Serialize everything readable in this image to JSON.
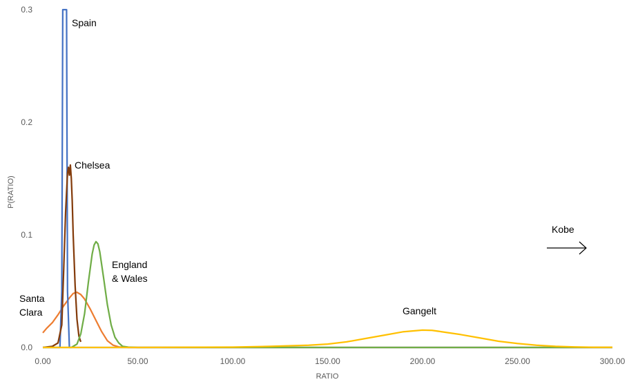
{
  "chart_data": {
    "type": "line",
    "title": "",
    "xlabel": "RATIO",
    "ylabel": "P(RATIO)",
    "xlim": [
      0,
      300
    ],
    "ylim": [
      0,
      0.3
    ],
    "x_ticks": [
      "0.00",
      "50.00",
      "100.00",
      "150.00",
      "200.00",
      "250.00",
      "300.00"
    ],
    "y_ticks": [
      "0.0",
      "0.1",
      "0.2",
      "0.3"
    ],
    "grid": false,
    "legend": "none",
    "series": [
      {
        "label": "Santa Clara",
        "label_lines": [
          "Santa",
          "Clara"
        ],
        "color": "#ED7D31",
        "x": [
          0,
          2,
          5,
          8,
          11,
          14,
          16,
          18,
          20,
          22,
          25,
          28,
          31,
          34,
          37,
          40,
          45,
          300
        ],
        "y": [
          0.013,
          0.017,
          0.022,
          0.029,
          0.037,
          0.044,
          0.048,
          0.049,
          0.047,
          0.043,
          0.034,
          0.024,
          0.014,
          0.006,
          0.002,
          0.0005,
          0,
          0
        ]
      },
      {
        "label": "Spain",
        "label_lines": [
          "Spain"
        ],
        "color": "#4472C4",
        "x": [
          0,
          9,
          10,
          10.5,
          11,
          11.5,
          12,
          12.5,
          13,
          14,
          300
        ],
        "y": [
          0,
          0,
          0.05,
          0.3,
          0.3,
          0.3,
          0.3,
          0.3,
          0.05,
          0,
          0
        ]
      },
      {
        "label": "Chelsea",
        "label_lines": [
          "Chelsea"
        ],
        "color": "#843C0C",
        "x": [
          0,
          5,
          8,
          10,
          11,
          12,
          13,
          13.5,
          14,
          14.5,
          15,
          15.5,
          16,
          17,
          18,
          19,
          20
        ],
        "y": [
          0,
          0.001,
          0.004,
          0.02,
          0.07,
          0.12,
          0.155,
          0.16,
          0.153,
          0.162,
          0.15,
          0.13,
          0.1,
          0.055,
          0.025,
          0.01,
          0.005
        ]
      },
      {
        "label": "England & Wales",
        "label_lines": [
          "England",
          "& Wales"
        ],
        "color": "#70AD47",
        "x": [
          0,
          15,
          18,
          20,
          22,
          24,
          26,
          27,
          28,
          29,
          30,
          32,
          34,
          36,
          38,
          40,
          42,
          45,
          50,
          300
        ],
        "y": [
          0,
          0,
          0.003,
          0.012,
          0.03,
          0.058,
          0.083,
          0.091,
          0.094,
          0.092,
          0.085,
          0.062,
          0.038,
          0.02,
          0.009,
          0.004,
          0.001,
          0.0003,
          0,
          0
        ]
      },
      {
        "label": "Gangelt",
        "label_lines": [
          "Gangelt"
        ],
        "color": "#FFC000",
        "x": [
          0,
          50,
          100,
          120,
          140,
          150,
          160,
          170,
          180,
          190,
          200,
          205,
          210,
          220,
          230,
          240,
          250,
          260,
          270,
          280,
          290,
          300
        ],
        "y": [
          0,
          0,
          0.0003,
          0.001,
          0.002,
          0.003,
          0.005,
          0.008,
          0.011,
          0.014,
          0.0154,
          0.0152,
          0.014,
          0.0115,
          0.0085,
          0.0055,
          0.0035,
          0.002,
          0.001,
          0.0005,
          0.0002,
          0.0001
        ]
      }
    ],
    "annotations": [
      {
        "text": "Kobe",
        "arrow": "right"
      }
    ]
  }
}
